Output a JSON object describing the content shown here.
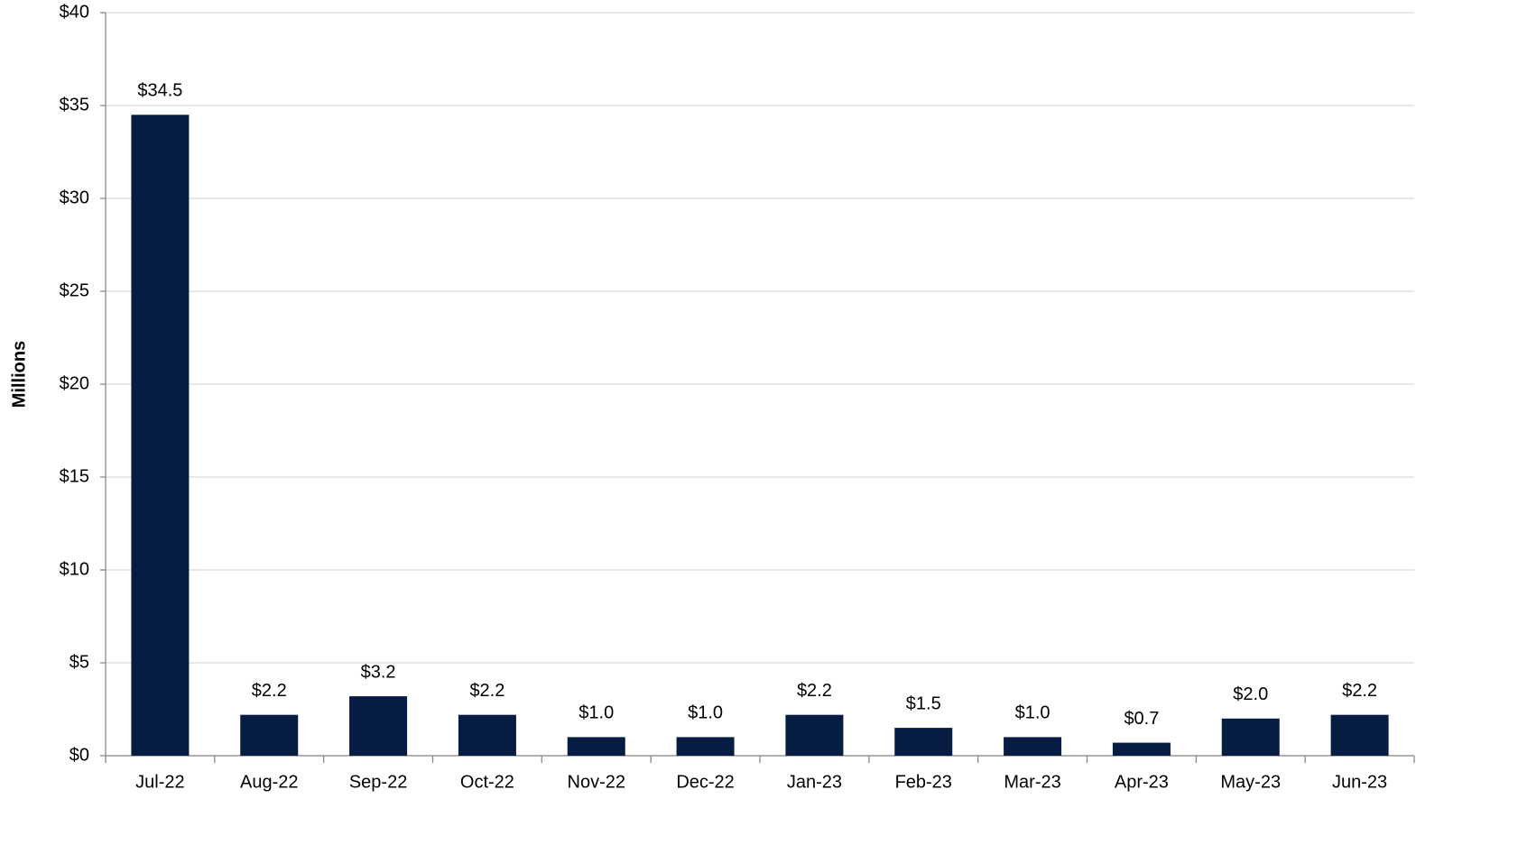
{
  "chart_data": {
    "type": "bar",
    "y_label": "Millions",
    "categories": [
      "Jul-22",
      "Aug-22",
      "Sep-22",
      "Oct-22",
      "Nov-22",
      "Dec-22",
      "Jan-23",
      "Feb-23",
      "Mar-23",
      "Apr-23",
      "May-23",
      "Jun-23"
    ],
    "values": [
      34.5,
      2.2,
      3.2,
      2.2,
      1.0,
      1.0,
      2.2,
      1.5,
      1.0,
      0.7,
      2.0,
      2.2
    ],
    "value_labels": [
      "$34.5",
      "$2.2",
      "$3.2",
      "$2.2",
      "$1.0",
      "$1.0",
      "$2.2",
      "$1.5",
      "$1.0",
      "$0.7",
      "$2.0",
      "$2.2"
    ],
    "color": "#061c42",
    "ylim": [
      0,
      40
    ],
    "yticks": [
      {
        "value": 0,
        "label": "$0"
      },
      {
        "value": 5,
        "label": "$5"
      },
      {
        "value": 10,
        "label": "$10"
      },
      {
        "value": 15,
        "label": "$15"
      },
      {
        "value": 20,
        "label": "$20"
      },
      {
        "value": 25,
        "label": "$25"
      },
      {
        "value": 30,
        "label": "$30"
      },
      {
        "value": 35,
        "label": "$35"
      },
      {
        "value": 40,
        "label": "$40"
      }
    ],
    "grid": true
  }
}
